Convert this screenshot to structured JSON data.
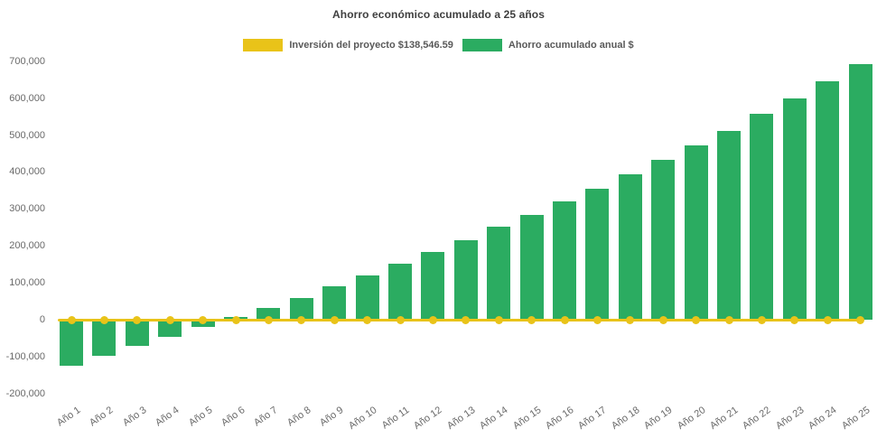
{
  "title": "Ahorro económico acumulado a 25 años",
  "legend": {
    "investment": {
      "label": "Inversión del proyecto $138,546.59",
      "color": "#e9c319"
    },
    "savings": {
      "label": "Ahorro acumulado anual $",
      "color": "#2bac61"
    }
  },
  "colors": {
    "bar_green": "#2bac61",
    "line_yellow": "#e9c319",
    "title_text": "#3f3f3f",
    "axis_text": "#6a6a6a",
    "legend_text": "#595959"
  },
  "chart_data": {
    "type": "bar",
    "title": "Ahorro económico acumulado a 25 años",
    "categories": [
      "Año 1",
      "Año 2",
      "Año 3",
      "Año 4",
      "Año 5",
      "Año 6",
      "Año 7",
      "Año 8",
      "Año 9",
      "Año 10",
      "Año 11",
      "Año 12",
      "Año 13",
      "Año 14",
      "Año 15",
      "Año 16",
      "Año 17",
      "Año 18",
      "Año 19",
      "Año 20",
      "Año 21",
      "Año 22",
      "Año 23",
      "Año 24",
      "Año 25"
    ],
    "series": [
      {
        "name": "Ahorro acumulado anual $",
        "type": "bar",
        "color": "#2bac61",
        "values": [
          -125000,
          -98000,
          -72000,
          -47000,
          -20000,
          8000,
          33000,
          59000,
          91000,
          121000,
          151000,
          183000,
          216000,
          251000,
          284000,
          320000,
          355000,
          394000,
          433000,
          471000,
          512000,
          557000,
          598000,
          646000,
          692000
        ]
      },
      {
        "name": "Inversión del proyecto $138,546.59",
        "type": "line",
        "color": "#e9c319",
        "amount_label": "$138,546.59",
        "plotted_at": 0,
        "markers": true
      }
    ],
    "xlabel": "",
    "ylabel": "",
    "ylim": [
      -200000,
      700000
    ],
    "y_tick_interval": 100000,
    "y_tick_labels": [
      "700,000",
      "600,000",
      "500,000",
      "400,000",
      "300,000",
      "200,000",
      "100,000",
      "0",
      "-100,000",
      "-200,000"
    ],
    "grid": false,
    "legend_position": "top"
  }
}
